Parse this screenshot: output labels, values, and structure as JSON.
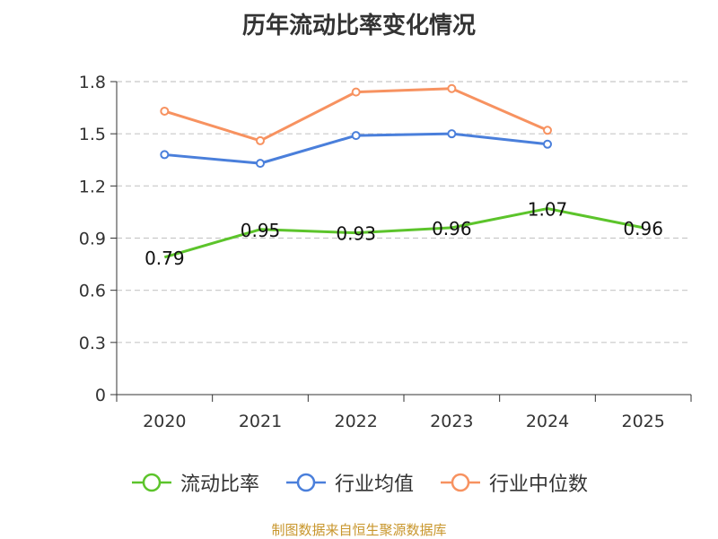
{
  "chart_data": {
    "type": "line",
    "title": "历年流动比率变化情况",
    "categories": [
      "2020",
      "2021",
      "2022",
      "2023",
      "2024",
      "2025"
    ],
    "ylim": [
      0,
      1.8
    ],
    "yticks": [
      "0",
      "0.3",
      "0.6",
      "0.9",
      "1.2",
      "1.5",
      "1.8"
    ],
    "grid": true,
    "legend_position": "bottom",
    "series": [
      {
        "name": "流动比率",
        "color": "#5cc42b",
        "values": [
          0.79,
          0.95,
          0.93,
          0.96,
          1.07,
          0.96
        ],
        "labels": [
          "0.79",
          "0.95",
          "0.93",
          "0.96",
          "1.07",
          "0.96"
        ]
      },
      {
        "name": "行业均值",
        "color": "#4a7fdb",
        "values": [
          1.38,
          1.33,
          1.49,
          1.5,
          1.44,
          null
        ]
      },
      {
        "name": "行业中位数",
        "color": "#f79260",
        "values": [
          1.63,
          1.46,
          1.74,
          1.76,
          1.52,
          null
        ]
      }
    ]
  },
  "source": "制图数据来自恒生聚源数据库"
}
